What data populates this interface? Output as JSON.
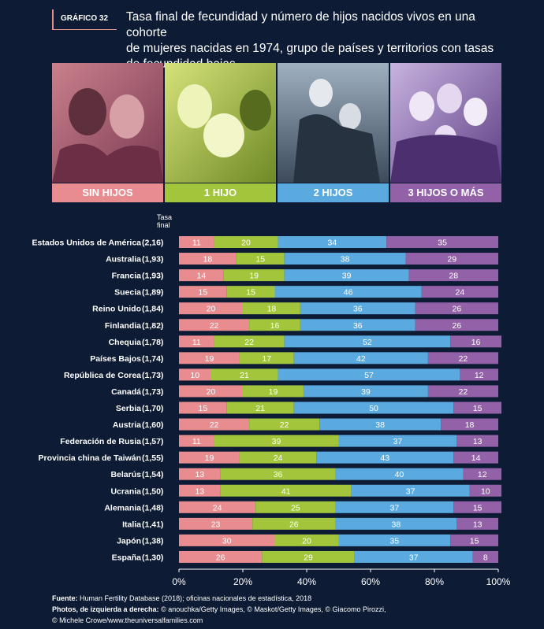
{
  "header": {
    "badge": "GRÁFICO 32",
    "title_lines": [
      "Tasa final de fecundidad y número de hijos nacidos vivos en una cohorte",
      "de mujeres nacidas en 1974, grupo de países y territorios con tasas",
      "de fecundidad bajas"
    ]
  },
  "categories_header": [
    {
      "label": "SIN HIJOS",
      "color": "#e88c90"
    },
    {
      "label": "1 HIJO",
      "color": "#a2c53c"
    },
    {
      "label": "2 HIJOS",
      "color": "#5aaadf"
    },
    {
      "label": "3 HIJOS O MÁS",
      "color": "#9261a7"
    }
  ],
  "rate_header": [
    "Tasa",
    "final"
  ],
  "chart_data": {
    "type": "bar",
    "orientation": "horizontal",
    "stacked": true,
    "title": "Tasa final de fecundidad y número de hijos nacidos vivos en una cohorte de mujeres nacidas en 1974, grupo de países y territorios con tasas de fecundidad bajas",
    "categories": [
      "Estados Unidos de América",
      "Australia",
      "Francia",
      "Suecia",
      "Reino Unido",
      "Finlandia",
      "Chequia",
      "Países Bajos",
      "República de Corea",
      "Canadá",
      "Serbia",
      "Austria",
      "Federación de Rusia",
      "Provincia china de Taiwán",
      "Belarús",
      "Ucrania",
      "Alemania",
      "Italia",
      "Japón",
      "España"
    ],
    "rates": [
      "(2,16)",
      "(1,93)",
      "(1,93)",
      "(1,89)",
      "(1,84)",
      "(1,82)",
      "(1,78)",
      "(1,74)",
      "(1,73)",
      "(1,73)",
      "(1,70)",
      "(1,60)",
      "(1,57)",
      "(1,55)",
      "(1,54)",
      "(1,50)",
      "(1,48)",
      "(1,41)",
      "(1,38)",
      "(1,30)"
    ],
    "series": [
      {
        "name": "SIN HIJOS",
        "color": "#e88c90",
        "values": [
          11,
          18,
          14,
          15,
          20,
          22,
          11,
          19,
          10,
          20,
          15,
          22,
          11,
          19,
          13,
          13,
          24,
          23,
          30,
          26
        ]
      },
      {
        "name": "1 HIJO",
        "color": "#a2c53c",
        "values": [
          20,
          15,
          19,
          15,
          18,
          16,
          22,
          17,
          21,
          19,
          21,
          22,
          39,
          24,
          36,
          41,
          25,
          26,
          20,
          29
        ]
      },
      {
        "name": "2 HIJOS",
        "color": "#5aaadf",
        "values": [
          34,
          38,
          39,
          46,
          36,
          36,
          52,
          42,
          57,
          39,
          50,
          38,
          37,
          43,
          40,
          37,
          37,
          38,
          35,
          37
        ]
      },
      {
        "name": "3 HIJOS O MÁS",
        "color": "#9261a7",
        "values": [
          35,
          29,
          28,
          24,
          26,
          26,
          16,
          22,
          12,
          22,
          15,
          18,
          13,
          14,
          12,
          10,
          15,
          13,
          15,
          8
        ]
      }
    ],
    "x_ticks": [
      "0%",
      "20%",
      "40%",
      "60%",
      "80%",
      "100%"
    ],
    "xlim": [
      0,
      100
    ]
  },
  "footer": {
    "source_label": "Fuente:",
    "source_text": "Human Fertility Database (2018); oficinas nacionales de estadística, 2018",
    "photos_label": "Photos, de izquierda a derecha:",
    "photos_text": "© anouchka/Getty Images, © Maskot/Getty Images, © Giacomo Pirozzi,",
    "photos_text2": "© Michele Crowe/www.theuniversalfamilies.com"
  }
}
